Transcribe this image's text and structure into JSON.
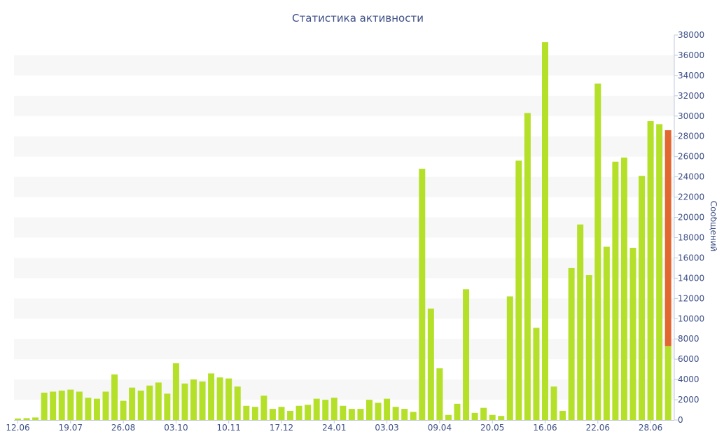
{
  "chart_data": {
    "type": "bar",
    "title": "Статистика активности",
    "ylabel": "Сообщений",
    "ylim": [
      0,
      38000
    ],
    "y_ticks": [
      0,
      2000,
      4000,
      6000,
      8000,
      10000,
      12000,
      14000,
      16000,
      18000,
      20000,
      22000,
      24000,
      26000,
      28000,
      30000,
      32000,
      34000,
      36000,
      38000
    ],
    "x_tick_labels": [
      {
        "index": 0,
        "label": "12.06"
      },
      {
        "index": 6,
        "label": "19.07"
      },
      {
        "index": 12,
        "label": "26.08"
      },
      {
        "index": 18,
        "label": "03.10"
      },
      {
        "index": 24,
        "label": "10.11"
      },
      {
        "index": 30,
        "label": "17.12"
      },
      {
        "index": 36,
        "label": "24.01"
      },
      {
        "index": 42,
        "label": "03.03"
      },
      {
        "index": 48,
        "label": "09.04"
      },
      {
        "index": 54,
        "label": "20.05"
      },
      {
        "index": 60,
        "label": "16.06"
      },
      {
        "index": 66,
        "label": "22.06"
      },
      {
        "index": 72,
        "label": "28.06"
      }
    ],
    "grid": "alternating horizontal bands",
    "series": [
      {
        "color": "#b5e02a",
        "values": [
          150,
          180,
          250,
          2700,
          2800,
          2900,
          3000,
          2800,
          2200,
          2100,
          2800,
          4500,
          1900,
          3200,
          2900,
          3400,
          3700,
          2600,
          5600,
          3600,
          4000,
          3800,
          4600,
          4200,
          4100,
          3300,
          1400,
          1300,
          2400,
          1100,
          1300,
          900,
          1400,
          1500,
          2100,
          2000,
          2200,
          1400,
          1100,
          1100,
          2000,
          1700,
          2100,
          1300,
          1100,
          800,
          24800,
          11000,
          5100,
          500,
          1600,
          12900,
          700,
          1200,
          500,
          400,
          12200,
          25600,
          30300,
          9100,
          37300,
          3300,
          900,
          15000,
          19300,
          14300,
          33200,
          17100,
          25500,
          25900,
          17000,
          24100,
          29500,
          29200,
          7300
        ]
      }
    ],
    "highlight": {
      "index": 74,
      "color": "#e2662f",
      "from": 7300,
      "to": 28600
    }
  }
}
